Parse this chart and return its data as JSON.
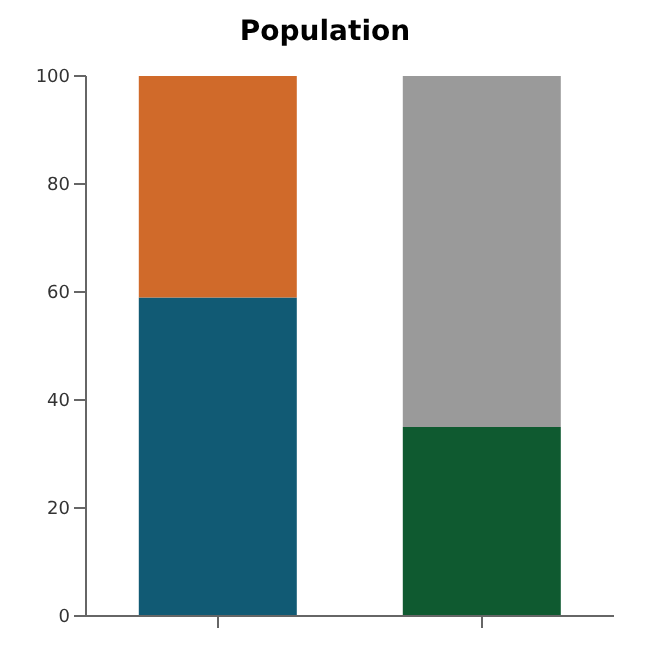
{
  "chart_data": {
    "type": "bar",
    "title": "Population",
    "categories": [
      null,
      null
    ],
    "stacked": true,
    "ylim": [
      0,
      100
    ],
    "yticks": [
      0,
      20,
      40,
      60,
      80,
      100
    ],
    "grid": false,
    "legend": false,
    "series": [
      {
        "colors": [
          "#115a74",
          "#0f5a30"
        ],
        "values": [
          59,
          35
        ]
      },
      {
        "colors": [
          "#d06a2a",
          "#9a9a9a"
        ],
        "values": [
          41,
          65
        ]
      }
    ]
  }
}
